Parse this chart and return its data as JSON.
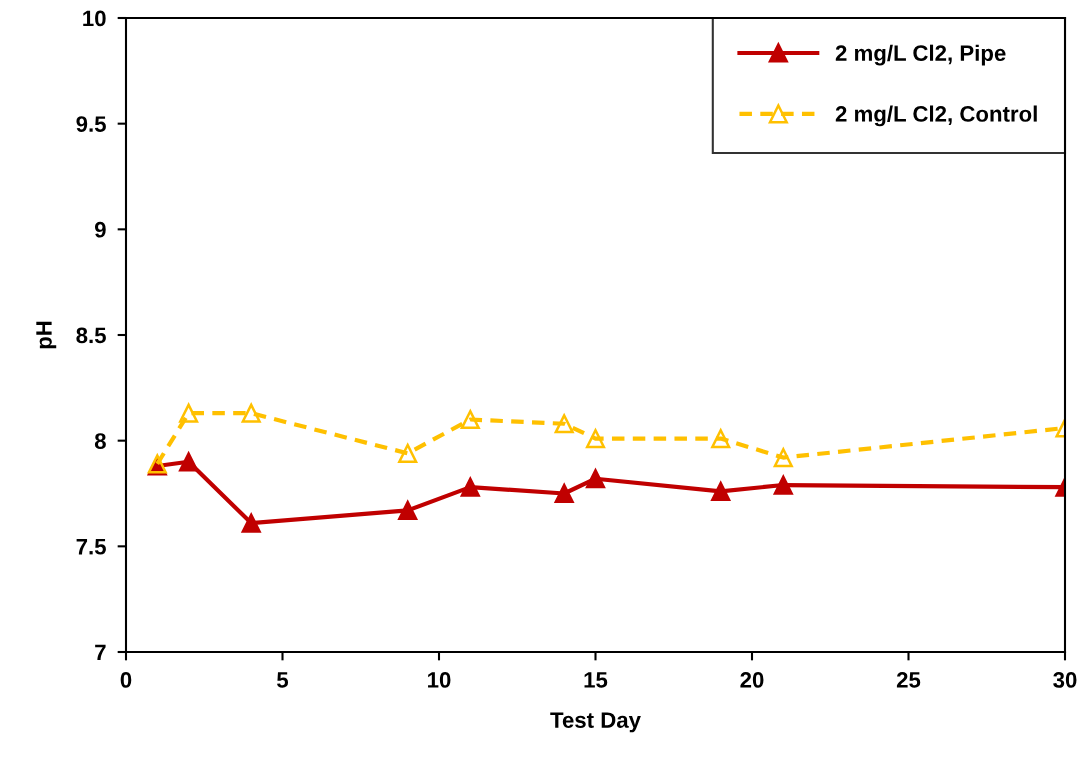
{
  "chart_data": {
    "type": "line",
    "xlabel": "Test Day",
    "ylabel": "pH",
    "xlim": [
      0,
      30
    ],
    "xticks": [
      0,
      5,
      10,
      15,
      20,
      25,
      30
    ],
    "ylim": [
      7,
      10
    ],
    "yticks": [
      7,
      {
        "value": 7.5,
        "label": "7.5"
      },
      8,
      {
        "value": 8.5,
        "label": "8.5"
      },
      9,
      {
        "value": 9.5,
        "label": "9.5"
      },
      10
    ],
    "grid": false,
    "legend": "top right",
    "marker": "triangle",
    "series": [
      {
        "name": "2 mg/L Cl2, Pipe",
        "color": "#c00000",
        "line_style": "solid",
        "x": [
          1,
          2,
          4,
          9,
          11,
          14,
          15,
          19,
          21,
          30
        ],
        "values": [
          7.88,
          7.9,
          7.61,
          7.67,
          7.78,
          7.75,
          7.82,
          7.76,
          7.79,
          7.78
        ]
      },
      {
        "name": "2 mg/L Cl2, Control",
        "color": "#ffc000",
        "line_style": "dashed",
        "x": [
          1,
          2,
          4,
          9,
          11,
          14,
          15,
          19,
          21,
          30
        ],
        "values": [
          7.89,
          8.13,
          8.13,
          7.94,
          8.1,
          8.08,
          8.01,
          8.01,
          7.92,
          8.06
        ]
      }
    ]
  }
}
